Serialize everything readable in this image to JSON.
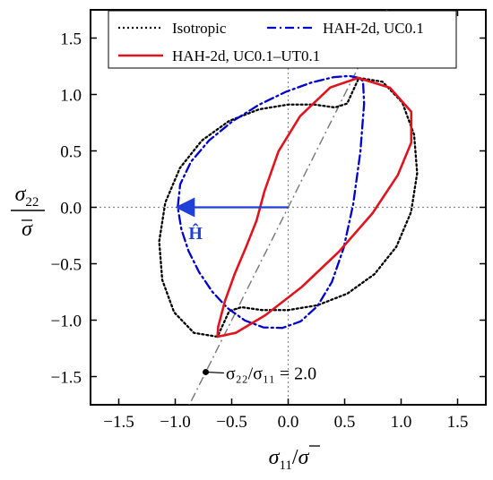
{
  "chart_data": {
    "type": "line",
    "xlim": [
      -1.75,
      1.75
    ],
    "ylim": [
      -1.75,
      1.75
    ],
    "x_ticks": [
      -1.5,
      -1.0,
      -0.5,
      0.0,
      0.5,
      1.0,
      1.5
    ],
    "y_ticks": [
      -1.5,
      -1.0,
      -0.5,
      0.0,
      0.5,
      1.0,
      1.5
    ],
    "x_tick_labels": [
      "−1.5",
      "−1.0",
      "−0.5",
      "0.0",
      "0.5",
      "1.0",
      "1.5"
    ],
    "y_tick_labels": [
      "−1.5",
      "−1.0",
      "−0.5",
      "0.0",
      "0.5",
      "1.0",
      "1.5"
    ],
    "xlabel": {
      "sigma": "σ",
      "sub": "11",
      "slash": "/",
      "sigma_bar": "σ"
    },
    "ylabel": {
      "numerator_sigma": "σ",
      "numerator_sub": "22",
      "denominator": "σ"
    },
    "legend_placement": "top",
    "series": [
      {
        "name": "Isotropic",
        "color": "#000000",
        "style": "dotted",
        "points": [
          [
            0.626,
            1.147
          ],
          [
            0.835,
            1.113
          ],
          [
            1.01,
            0.929
          ],
          [
            1.115,
            0.643
          ],
          [
            1.142,
            0.302
          ],
          [
            1.088,
            -0.042
          ],
          [
            0.958,
            -0.349
          ],
          [
            0.764,
            -0.592
          ],
          [
            0.523,
            -0.765
          ],
          [
            0.259,
            -0.868
          ],
          [
            -0.002,
            -0.911
          ],
          [
            -0.234,
            -0.91
          ],
          [
            -0.414,
            -0.885
          ],
          [
            -0.522,
            -0.92
          ],
          [
            -0.626,
            -1.147
          ],
          [
            -0.835,
            -1.113
          ],
          [
            -1.01,
            -0.929
          ],
          [
            -1.115,
            -0.643
          ],
          [
            -1.142,
            -0.302
          ],
          [
            -1.088,
            0.042
          ],
          [
            -0.958,
            0.349
          ],
          [
            -0.764,
            0.592
          ],
          [
            -0.523,
            0.765
          ],
          [
            -0.259,
            0.868
          ],
          [
            0.002,
            0.911
          ],
          [
            0.234,
            0.91
          ],
          [
            0.414,
            0.885
          ],
          [
            0.522,
            0.92
          ],
          [
            0.626,
            1.147
          ]
        ]
      },
      {
        "name": "HAH-2d, UC0.1",
        "color": "#0000cc",
        "style": "dashdot",
        "points": [
          [
            0.626,
            1.147
          ],
          [
            0.542,
            1.164
          ],
          [
            0.4,
            1.153
          ],
          [
            0.208,
            1.106
          ],
          [
            -0.018,
            1.025
          ],
          [
            -0.259,
            0.909
          ],
          [
            -0.493,
            0.763
          ],
          [
            -0.701,
            0.592
          ],
          [
            -0.861,
            0.403
          ],
          [
            -0.956,
            0.203
          ],
          [
            -0.978,
            0.001
          ],
          [
            -0.946,
            -0.194
          ],
          [
            -0.883,
            -0.385
          ],
          [
            -0.79,
            -0.573
          ],
          [
            -0.673,
            -0.747
          ],
          [
            -0.537,
            -0.893
          ],
          [
            -0.384,
            -1.002
          ],
          [
            -0.219,
            -1.064
          ],
          [
            -0.051,
            -1.069
          ],
          [
            0.111,
            -1.01
          ],
          [
            0.259,
            -0.876
          ],
          [
            0.387,
            -0.661
          ],
          [
            0.491,
            -0.36
          ],
          [
            0.575,
            0.026
          ],
          [
            0.639,
            0.489
          ],
          [
            0.672,
            0.918
          ],
          [
            0.663,
            1.12
          ],
          [
            0.626,
            1.147
          ]
        ]
      },
      {
        "name": "HAH-2d, UC0.1−UT0.1",
        "color": "#e0141e",
        "style": "solid",
        "points": [
          [
            -0.626,
            -1.147
          ],
          [
            -0.465,
            -1.113
          ],
          [
            -0.202,
            -0.956
          ],
          [
            0.12,
            -0.706
          ],
          [
            0.45,
            -0.393
          ],
          [
            0.747,
            -0.052
          ],
          [
            0.97,
            0.284
          ],
          [
            1.09,
            0.574
          ],
          [
            1.09,
            0.848
          ],
          [
            0.9,
            1.06
          ],
          [
            0.62,
            1.147
          ],
          [
            0.373,
            1.062
          ],
          [
            0.105,
            0.807
          ],
          [
            -0.086,
            0.497
          ],
          [
            -0.211,
            0.139
          ],
          [
            -0.28,
            -0.118
          ],
          [
            -0.372,
            -0.35
          ],
          [
            -0.474,
            -0.591
          ],
          [
            -0.561,
            -0.835
          ],
          [
            -0.62,
            -1.059
          ],
          [
            -0.626,
            -1.147
          ]
        ]
      }
    ],
    "reference_line": {
      "label": "σ₂₂/σ₁₁ = 2.0",
      "slope": 2.0,
      "color": "#777777",
      "style": "dashdot",
      "marker_point": [
        -0.73,
        -1.46
      ],
      "label_anchor": [
        -0.6,
        -1.5
      ]
    },
    "annotation_arrow": {
      "label": "Ĥ",
      "from": [
        0.0,
        0.0
      ],
      "to": [
        -1.0,
        0.0
      ],
      "color": "#1f3fd6"
    },
    "zero_lines": {
      "color": "#888888",
      "style": "dotted"
    }
  },
  "legend": {
    "entry1": "Isotropic",
    "entry2": "HAH-2d, UC0.1",
    "entry3": "HAH-2d, UC0.1–UT0.1"
  }
}
